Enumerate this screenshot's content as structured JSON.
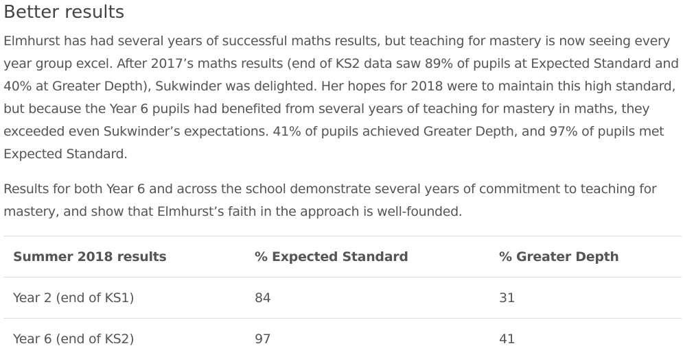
{
  "heading": "Better results",
  "paragraphs": [
    "Elmhurst has had several years of successful maths results, but teaching for mastery is now seeing every year group excel. After 2017’s maths results (end of KS2 data saw 89% of pupils at Expected Standard and 40% at Greater Depth), Sukwinder was delighted. Her hopes for 2018 were to maintain this high standard, but because the Year 6 pupils had benefited from several years of teaching for mastery in maths, they exceeded even Sukwinder’s expectations. 41% of pupils achieved Greater Depth, and 97% of pupils met Expected Standard.",
    "Results for both Year 6 and across the school demonstrate several years of commitment to teaching for mastery, and show that Elmhurst’s faith in the approach is well-founded."
  ],
  "table": {
    "header": [
      "Summer 2018 results",
      "% Expected Standard",
      "% Greater Depth"
    ],
    "rows": [
      [
        "Year 2 (end of KS1)",
        84,
        31
      ],
      [
        "Year 6 (end of KS2)",
        97,
        41
      ]
    ]
  }
}
